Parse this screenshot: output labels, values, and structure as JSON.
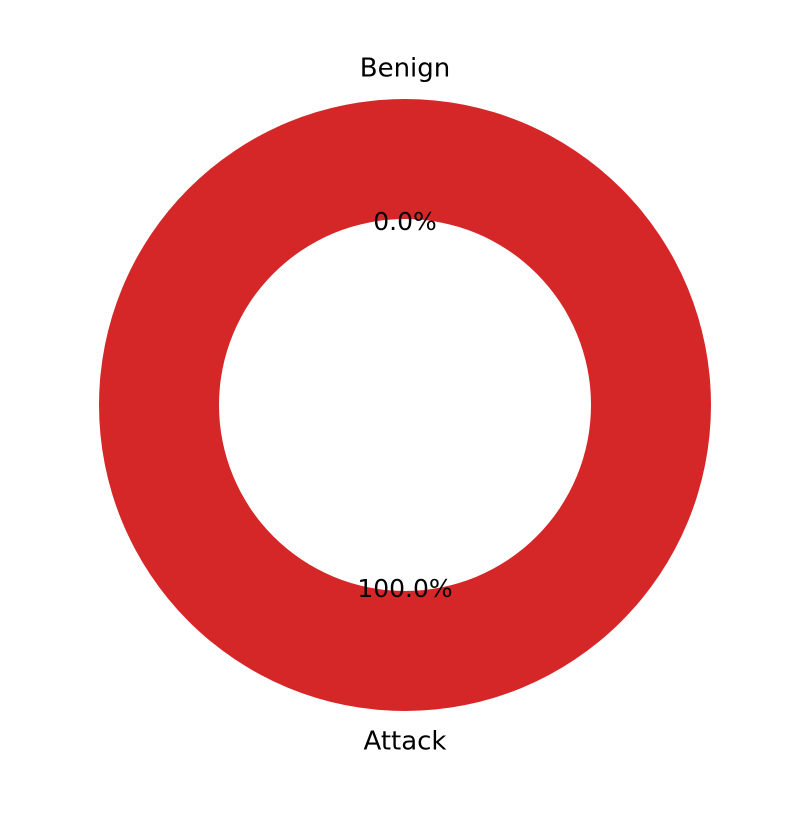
{
  "chart_data": {
    "type": "pie",
    "donut": true,
    "start_angle_deg": 90,
    "counterclock": true,
    "categories": [
      "Benign",
      "Attack"
    ],
    "values": [
      0.0,
      100.0
    ],
    "value_labels": [
      "0.0%",
      "100.0%"
    ],
    "colors": [
      "#1f77b4",
      "#d62728"
    ],
    "title": "",
    "legend": "none"
  }
}
